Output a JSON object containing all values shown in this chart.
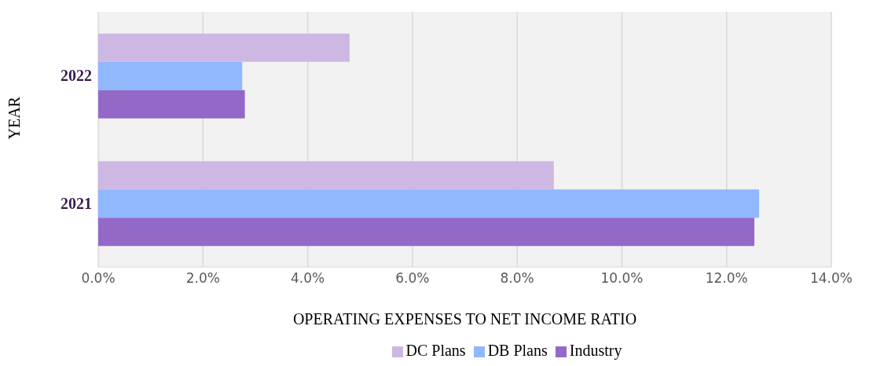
{
  "chart_data": {
    "type": "bar",
    "orientation": "horizontal",
    "xlabel": "OPERATING EXPENSES TO NET INCOME RATIO",
    "ylabel": "YEAR",
    "categories": [
      "2022",
      "2021"
    ],
    "series": [
      {
        "name": "DC Plans",
        "color": "#cdb8e3",
        "values": [
          4.8,
          8.7
        ]
      },
      {
        "name": "DB Plans",
        "color": "#91b7fd",
        "values": [
          2.75,
          12.62
        ]
      },
      {
        "name": "Industry",
        "color": "#9369c8",
        "values": [
          2.8,
          12.53
        ]
      }
    ],
    "xlim": [
      0,
      14
    ],
    "xticks": [
      {
        "value": 0,
        "label": "0.0%"
      },
      {
        "value": 2,
        "label": "2.0%"
      },
      {
        "value": 4,
        "label": "4.0%"
      },
      {
        "value": 6,
        "label": "6.0%"
      },
      {
        "value": 8,
        "label": "8.0%"
      },
      {
        "value": 10,
        "label": "10.0%"
      },
      {
        "value": 12,
        "label": "12.0%"
      },
      {
        "value": 14,
        "label": "14.0%"
      }
    ],
    "grid": "x",
    "legend": "bottom"
  }
}
